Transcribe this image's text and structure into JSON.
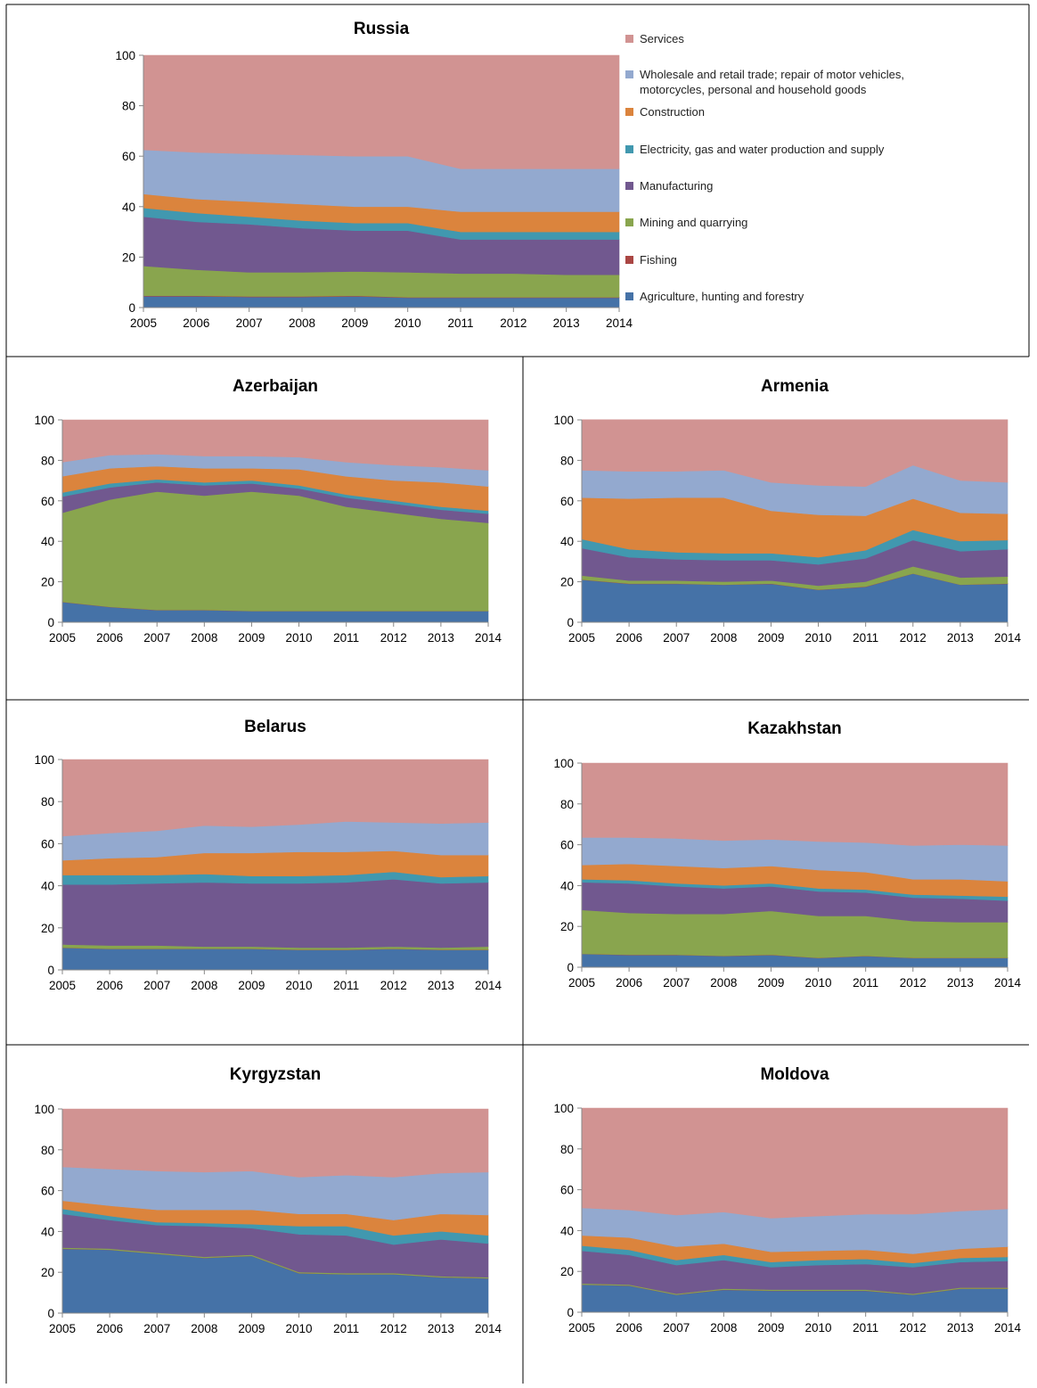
{
  "layers": [
    {
      "key": "agriculture",
      "name": "Agriculture, hunting and forestry",
      "color": "#4572a7"
    },
    {
      "key": "fishing",
      "name": "Fishing",
      "color": "#aa4643"
    },
    {
      "key": "mining",
      "name": "Mining and quarrying",
      "color": "#89a54e"
    },
    {
      "key": "manufacturing",
      "name": "Manufacturing",
      "color": "#71588f"
    },
    {
      "key": "electricity",
      "name": "Electricity, gas and water production and supply",
      "color": "#4198af"
    },
    {
      "key": "construction",
      "name": "Construction",
      "color": "#db843d"
    },
    {
      "key": "trade",
      "name": "Wholesale and retail trade; repair of motor vehicles,\nmotorcycles, personal and household goods",
      "color": "#93a9cf"
    },
    {
      "key": "services",
      "name": "Services",
      "color": "#d19392"
    }
  ],
  "legend_order": [
    "services",
    "trade",
    "construction",
    "electricity",
    "manufacturing",
    "mining",
    "fishing",
    "agriculture"
  ],
  "chart_data": [
    {
      "type": "area",
      "stacked": true,
      "title": "Russia",
      "x": [
        2005,
        2006,
        2007,
        2008,
        2009,
        2010,
        2011,
        2012,
        2013,
        2014
      ],
      "ylim": [
        0,
        100
      ],
      "yticks": [
        0,
        20,
        40,
        60,
        80,
        100
      ],
      "grid": false,
      "legend": "right",
      "series": [
        {
          "key": "agriculture",
          "values": [
            4.5,
            4.5,
            4.2,
            4.2,
            4.5,
            3.9,
            3.9,
            3.9,
            3.9,
            3.9
          ]
        },
        {
          "key": "fishing",
          "values": [
            0.2,
            0.2,
            0.2,
            0.2,
            0.2,
            0.2,
            0.2,
            0.2,
            0.2,
            0.2
          ]
        },
        {
          "key": "mining",
          "values": [
            11.8,
            10.3,
            9.6,
            9.6,
            9.6,
            9.9,
            9.4,
            9.4,
            8.9,
            8.9
          ]
        },
        {
          "key": "manufacturing",
          "values": [
            19.5,
            19.0,
            19.0,
            17.5,
            16.2,
            16.5,
            13.5,
            13.5,
            14.0,
            14.0
          ]
        },
        {
          "key": "electricity",
          "values": [
            3.5,
            3.5,
            3.0,
            3.0,
            3.0,
            3.0,
            3.0,
            3.0,
            3.0,
            3.0
          ]
        },
        {
          "key": "construction",
          "values": [
            5.5,
            5.5,
            6.0,
            6.5,
            6.5,
            6.5,
            8.0,
            8.0,
            8.0,
            8.0
          ]
        },
        {
          "key": "trade",
          "values": [
            17.5,
            18.5,
            19.0,
            19.5,
            20.0,
            20.0,
            17.0,
            17.0,
            17.0,
            17.0
          ]
        },
        {
          "key": "services",
          "values": [
            37.5,
            38.5,
            39.0,
            39.5,
            40.0,
            40.0,
            45.0,
            45.0,
            45.0,
            45.0
          ]
        }
      ]
    },
    {
      "type": "area",
      "stacked": true,
      "title": "Azerbaijan",
      "x": [
        2005,
        2006,
        2007,
        2008,
        2009,
        2010,
        2011,
        2012,
        2013,
        2014
      ],
      "ylim": [
        0,
        100
      ],
      "yticks": [
        0,
        20,
        40,
        60,
        80,
        100
      ],
      "grid": false,
      "series": [
        {
          "key": "agriculture",
          "values": [
            10.0,
            7.5,
            6.0,
            6.0,
            5.5,
            5.5,
            5.5,
            5.5,
            5.5,
            5.5
          ]
        },
        {
          "key": "fishing",
          "values": [
            0.1,
            0.1,
            0.1,
            0.1,
            0.1,
            0.1,
            0.1,
            0.1,
            0.1,
            0.1
          ]
        },
        {
          "key": "mining",
          "values": [
            44.0,
            53.0,
            58.5,
            56.5,
            59.0,
            57.0,
            51.5,
            48.5,
            45.5,
            43.5
          ]
        },
        {
          "key": "manufacturing",
          "values": [
            8.0,
            6.0,
            4.5,
            5.0,
            4.0,
            3.5,
            4.5,
            4.5,
            4.5,
            4.5
          ]
        },
        {
          "key": "electricity",
          "values": [
            2.0,
            2.0,
            1.5,
            1.5,
            1.5,
            1.5,
            1.5,
            1.5,
            1.5,
            1.5
          ]
        },
        {
          "key": "construction",
          "values": [
            8.0,
            7.5,
            6.5,
            7.0,
            6.0,
            8.0,
            9.0,
            10.0,
            12.0,
            12.0
          ]
        },
        {
          "key": "trade",
          "values": [
            7.0,
            6.5,
            6.0,
            6.0,
            6.0,
            6.0,
            7.0,
            7.5,
            7.5,
            8.0
          ]
        },
        {
          "key": "services",
          "values": [
            20.9,
            17.4,
            16.9,
            17.9,
            17.9,
            18.4,
            20.9,
            22.4,
            23.4,
            24.9
          ]
        }
      ]
    },
    {
      "type": "area",
      "stacked": true,
      "title": "Armenia",
      "x": [
        2005,
        2006,
        2007,
        2008,
        2009,
        2010,
        2011,
        2012,
        2013,
        2014
      ],
      "ylim": [
        0,
        100
      ],
      "yticks": [
        0,
        20,
        40,
        60,
        80,
        100
      ],
      "grid": false,
      "series": [
        {
          "key": "agriculture",
          "values": [
            21.0,
            19.0,
            19.0,
            18.5,
            19.0,
            16.0,
            17.5,
            24.0,
            18.5,
            19.0
          ]
        },
        {
          "key": "fishing",
          "values": [
            0.1,
            0.1,
            0.1,
            0.1,
            0.1,
            0.1,
            0.1,
            0.1,
            0.1,
            0.1
          ]
        },
        {
          "key": "mining",
          "values": [
            2.0,
            1.5,
            1.5,
            1.5,
            1.5,
            2.0,
            2.5,
            3.5,
            3.5,
            3.5
          ]
        },
        {
          "key": "manufacturing",
          "values": [
            13.5,
            11.5,
            10.5,
            10.5,
            10.0,
            10.5,
            11.5,
            13.0,
            13.0,
            13.5
          ]
        },
        {
          "key": "electricity",
          "values": [
            4.5,
            4.0,
            3.5,
            3.5,
            3.5,
            3.5,
            4.0,
            5.0,
            5.0,
            4.5
          ]
        },
        {
          "key": "construction",
          "values": [
            20.5,
            25.0,
            27.0,
            27.5,
            21.0,
            21.0,
            17.0,
            15.5,
            14.0,
            13.0
          ]
        },
        {
          "key": "trade",
          "values": [
            13.5,
            13.5,
            13.0,
            13.5,
            14.0,
            14.5,
            14.5,
            16.5,
            16.0,
            15.5
          ]
        },
        {
          "key": "services",
          "values": [
            25.0,
            25.5,
            25.5,
            25.0,
            31.0,
            32.5,
            33.0,
            22.5,
            30.0,
            31.0
          ]
        }
      ]
    },
    {
      "type": "area",
      "stacked": true,
      "title": "Belarus",
      "x": [
        2005,
        2006,
        2007,
        2008,
        2009,
        2010,
        2011,
        2012,
        2013,
        2014
      ],
      "ylim": [
        0,
        100
      ],
      "yticks": [
        0,
        20,
        40,
        60,
        80,
        100
      ],
      "grid": false,
      "series": [
        {
          "key": "agriculture",
          "values": [
            10.5,
            10.0,
            10.0,
            10.0,
            10.0,
            9.5,
            9.5,
            10.0,
            9.5,
            9.5
          ]
        },
        {
          "key": "fishing",
          "values": [
            0.1,
            0.1,
            0.1,
            0.1,
            0.1,
            0.1,
            0.1,
            0.1,
            0.1,
            0.1
          ]
        },
        {
          "key": "mining",
          "values": [
            1.5,
            1.5,
            1.5,
            1.0,
            1.0,
            1.0,
            1.0,
            1.0,
            1.0,
            1.5
          ]
        },
        {
          "key": "manufacturing",
          "values": [
            28.5,
            29.0,
            29.5,
            30.5,
            30.0,
            30.5,
            31.0,
            32.0,
            30.5,
            30.5
          ]
        },
        {
          "key": "electricity",
          "values": [
            4.5,
            4.5,
            4.0,
            4.0,
            3.5,
            3.5,
            3.5,
            3.5,
            3.0,
            3.0
          ]
        },
        {
          "key": "construction",
          "values": [
            7.0,
            8.0,
            8.5,
            10.0,
            11.0,
            11.5,
            11.0,
            10.0,
            10.5,
            10.0
          ]
        },
        {
          "key": "trade",
          "values": [
            11.5,
            12.0,
            12.5,
            13.0,
            12.5,
            13.0,
            14.5,
            13.5,
            15.0,
            15.5
          ]
        },
        {
          "key": "services",
          "values": [
            36.4,
            34.9,
            33.9,
            31.4,
            31.9,
            30.9,
            29.4,
            29.9,
            30.4,
            29.9
          ]
        }
      ]
    },
    {
      "type": "area",
      "stacked": true,
      "title": "Kazakhstan",
      "x": [
        2005,
        2006,
        2007,
        2008,
        2009,
        2010,
        2011,
        2012,
        2013,
        2014
      ],
      "ylim": [
        0,
        100
      ],
      "yticks": [
        0,
        20,
        40,
        60,
        80,
        100
      ],
      "grid": false,
      "series": [
        {
          "key": "agriculture",
          "values": [
            6.5,
            6.0,
            6.0,
            5.5,
            6.0,
            4.5,
            5.5,
            4.5,
            4.5,
            4.5
          ]
        },
        {
          "key": "fishing",
          "values": [
            0.1,
            0.1,
            0.1,
            0.1,
            0.1,
            0.1,
            0.1,
            0.1,
            0.1,
            0.1
          ]
        },
        {
          "key": "mining",
          "values": [
            21.5,
            20.5,
            20.0,
            20.5,
            21.5,
            20.5,
            19.5,
            18.0,
            17.5,
            17.5
          ]
        },
        {
          "key": "manufacturing",
          "values": [
            13.5,
            14.5,
            13.5,
            12.5,
            12.0,
            12.0,
            11.5,
            11.5,
            11.5,
            10.5
          ]
        },
        {
          "key": "electricity",
          "values": [
            1.5,
            1.5,
            1.5,
            1.5,
            1.5,
            1.5,
            1.5,
            1.5,
            1.5,
            2.0
          ]
        },
        {
          "key": "construction",
          "values": [
            7.0,
            8.0,
            8.5,
            8.5,
            8.5,
            9.0,
            8.5,
            7.5,
            8.0,
            7.5
          ]
        },
        {
          "key": "trade",
          "values": [
            13.5,
            13.0,
            13.5,
            13.5,
            13.0,
            14.0,
            14.5,
            16.5,
            17.0,
            17.5
          ]
        },
        {
          "key": "services",
          "values": [
            36.4,
            36.4,
            36.9,
            37.9,
            37.4,
            38.4,
            38.9,
            40.4,
            39.9,
            40.4
          ]
        }
      ]
    },
    {
      "type": "area",
      "stacked": true,
      "title": "Kyrgyzstan",
      "x": [
        2005,
        2006,
        2007,
        2008,
        2009,
        2010,
        2011,
        2012,
        2013,
        2014
      ],
      "ylim": [
        0,
        100
      ],
      "yticks": [
        0,
        20,
        40,
        60,
        80,
        100
      ],
      "grid": false,
      "series": [
        {
          "key": "agriculture",
          "values": [
            31.5,
            31.0,
            29.0,
            27.0,
            28.0,
            19.5,
            19.0,
            19.0,
            17.5,
            17.0
          ]
        },
        {
          "key": "fishing",
          "values": [
            0.1,
            0.1,
            0.1,
            0.1,
            0.1,
            0.1,
            0.1,
            0.1,
            0.1,
            0.1
          ]
        },
        {
          "key": "mining",
          "values": [
            0.5,
            0.5,
            0.5,
            0.5,
            0.5,
            0.5,
            0.5,
            0.5,
            0.5,
            0.5
          ]
        },
        {
          "key": "manufacturing",
          "values": [
            16.5,
            14.0,
            13.5,
            15.0,
            13.0,
            18.5,
            18.5,
            14.0,
            18.0,
            16.5
          ]
        },
        {
          "key": "electricity",
          "values": [
            2.5,
            2.0,
            1.5,
            1.5,
            2.0,
            4.0,
            4.5,
            4.5,
            4.0,
            4.0
          ]
        },
        {
          "key": "construction",
          "values": [
            4.0,
            5.0,
            6.0,
            6.5,
            7.0,
            6.0,
            6.0,
            7.5,
            8.5,
            10.0
          ]
        },
        {
          "key": "trade",
          "values": [
            16.5,
            18.0,
            19.0,
            18.5,
            19.0,
            18.0,
            19.0,
            21.0,
            20.0,
            21.0
          ]
        },
        {
          "key": "services",
          "values": [
            28.4,
            29.4,
            30.4,
            30.9,
            30.4,
            33.4,
            32.4,
            33.4,
            31.4,
            30.9
          ]
        }
      ]
    },
    {
      "type": "area",
      "stacked": true,
      "title": "Moldova",
      "x": [
        2005,
        2006,
        2007,
        2008,
        2009,
        2010,
        2011,
        2012,
        2013,
        2014
      ],
      "ylim": [
        0,
        100
      ],
      "yticks": [
        0,
        20,
        40,
        60,
        80,
        100
      ],
      "grid": false,
      "series": [
        {
          "key": "agriculture",
          "values": [
            13.5,
            13.0,
            8.5,
            11.0,
            10.5,
            10.5,
            10.5,
            8.5,
            11.5,
            11.5
          ]
        },
        {
          "key": "fishing",
          "values": [
            0.1,
            0.1,
            0.1,
            0.1,
            0.1,
            0.1,
            0.1,
            0.1,
            0.1,
            0.1
          ]
        },
        {
          "key": "mining",
          "values": [
            0.5,
            0.5,
            0.5,
            0.5,
            0.5,
            0.5,
            0.5,
            0.5,
            0.5,
            0.5
          ]
        },
        {
          "key": "manufacturing",
          "values": [
            16.0,
            14.5,
            14.0,
            14.0,
            11.0,
            12.0,
            12.5,
            13.0,
            12.5,
            13.0
          ]
        },
        {
          "key": "electricity",
          "values": [
            2.5,
            2.5,
            2.5,
            2.5,
            2.5,
            2.5,
            2.5,
            2.0,
            2.0,
            2.0
          ]
        },
        {
          "key": "construction",
          "values": [
            5.0,
            6.0,
            6.5,
            5.5,
            5.0,
            4.5,
            4.5,
            4.5,
            4.5,
            5.0
          ]
        },
        {
          "key": "trade",
          "values": [
            13.5,
            13.5,
            15.5,
            15.5,
            16.5,
            17.0,
            17.5,
            19.5,
            18.5,
            18.5
          ]
        },
        {
          "key": "services",
          "values": [
            48.9,
            49.9,
            52.4,
            50.9,
            53.9,
            52.9,
            51.9,
            51.9,
            50.4,
            49.4
          ]
        }
      ]
    }
  ]
}
